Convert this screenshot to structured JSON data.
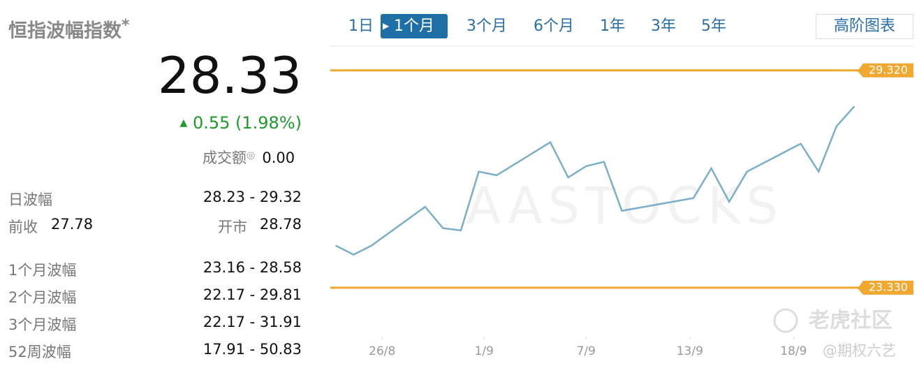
{
  "header": {
    "title": "恒指波幅指数",
    "mark": "*"
  },
  "quote": {
    "price": "28.33",
    "change": "0.55 (1.98%)",
    "turnover_label": "成交额",
    "turnover": "0.00"
  },
  "stats": {
    "day_range_label": "日波幅",
    "day_range": "28.23 - 29.32",
    "prev_close_label": "前收",
    "prev_close": "27.78",
    "open_label": "开市",
    "open": "28.78",
    "ranges": [
      [
        "1个月波幅",
        "23.16 - 28.58"
      ],
      [
        "2个月波幅",
        "22.17 - 29.81"
      ],
      [
        "3个月波幅",
        "22.17 - 31.91"
      ],
      [
        "52周波幅",
        "17.91 - 50.83"
      ]
    ]
  },
  "tabs": [
    "1日",
    "1个月",
    "3个月",
    "6个月",
    "1年",
    "3年",
    "5年"
  ],
  "active_tab": 1,
  "advanced_button": "高阶图表",
  "watermarks": [
    "AASTOCKS",
    "老虎社区",
    "@期权六艺"
  ],
  "chart_data": {
    "type": "line",
    "x": [
      0,
      1,
      2,
      5,
      6,
      7,
      8,
      9,
      12,
      13,
      14,
      15,
      16,
      20,
      21,
      22,
      23,
      26,
      27,
      28,
      29
    ],
    "values": [
      24.49,
      24.24,
      24.49,
      25.56,
      24.97,
      24.91,
      26.53,
      26.43,
      27.34,
      26.37,
      26.68,
      26.8,
      25.45,
      25.8,
      26.62,
      25.7,
      26.53,
      27.3,
      26.53,
      27.78,
      28.33
    ],
    "color": "#7aafc8",
    "xlim": [
      -0.3,
      32.3
    ],
    "ylim": [
      21.98,
      29.99
    ],
    "xticks": [
      {
        "value": 2.6,
        "label": "26/8"
      },
      {
        "value": 8.3,
        "label": "1/9"
      },
      {
        "value": 14,
        "label": "7/9"
      },
      {
        "value": 19.8,
        "label": "13/9"
      },
      {
        "value": 25.6,
        "label": "18/9"
      }
    ],
    "ref_lines": [
      {
        "value": 29.32,
        "label": "29.320"
      },
      {
        "value": 23.33,
        "label": "23.330"
      }
    ],
    "ref_color": "#f0a830"
  }
}
